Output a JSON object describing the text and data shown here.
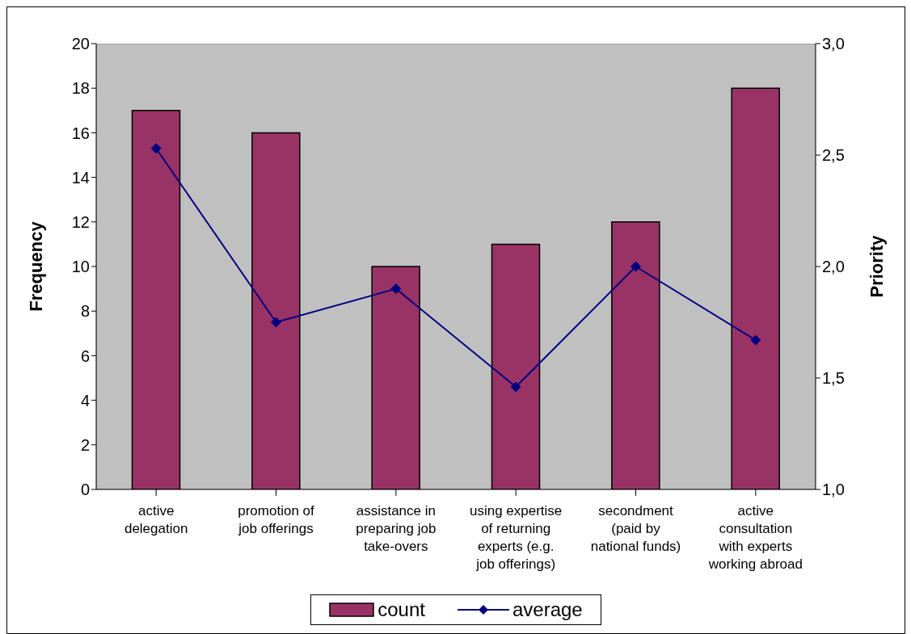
{
  "chart_data": {
    "type": "bar",
    "ylabel": "Frequency",
    "y2label": "Priority",
    "categories": [
      "active delegation",
      "promotion of job offerings",
      "assistance in preparing job take-overs",
      "using expertise of returning experts (e.g. job offerings)",
      "secondment (paid by national funds)",
      "active consultation with experts working abroad"
    ],
    "series": [
      {
        "name": "count",
        "color": "#993366",
        "values": [
          17,
          16,
          10,
          11,
          12,
          18
        ]
      },
      {
        "name": "average",
        "type": "line",
        "axis": "y2",
        "color": "#000080",
        "marker": "diamond",
        "values": [
          2.53,
          1.75,
          1.9,
          1.46,
          2.0,
          1.67
        ]
      }
    ],
    "ylim": [
      0,
      20
    ],
    "yticks": [
      0,
      2,
      4,
      6,
      8,
      10,
      12,
      14,
      16,
      18,
      20
    ],
    "y2lim": [
      1,
      3
    ],
    "y2ticks": [
      {
        "value": 1,
        "label": "1,0"
      },
      {
        "value": 1.5,
        "label": "1,5"
      },
      {
        "value": 2,
        "label": "2,0"
      },
      {
        "value": 2.5,
        "label": "2,5"
      },
      {
        "value": 3,
        "label": "3,0"
      }
    ],
    "grid": false,
    "legend": "bottom"
  }
}
